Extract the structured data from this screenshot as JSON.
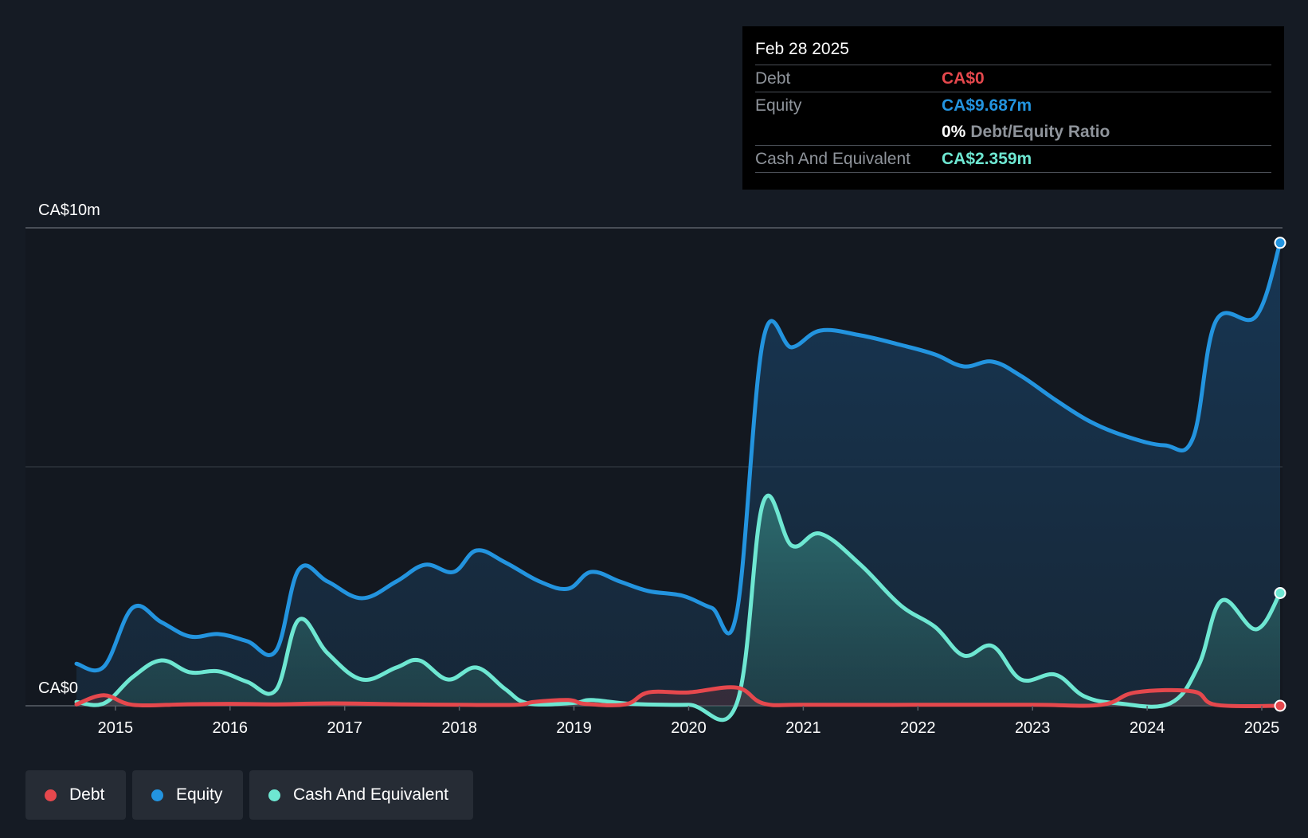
{
  "tooltip": {
    "date": "Feb 28 2025",
    "debt_label": "Debt",
    "debt_value": "CA$0",
    "equity_label": "Equity",
    "equity_value": "CA$9.687m",
    "ratio_value": "0%",
    "ratio_label": "Debt/Equity Ratio",
    "cash_label": "Cash And Equivalent",
    "cash_value": "CA$2.359m"
  },
  "legend": {
    "debt": "Debt",
    "equity": "Equity",
    "cash": "Cash And Equivalent"
  },
  "colors": {
    "debt": "#e5484d",
    "equity": "#2394df",
    "cash": "#6ee7d2",
    "background": "#151b24"
  },
  "chart_data": {
    "type": "area",
    "title": "",
    "xlabel": "",
    "ylabel": "",
    "ylim": [
      0,
      10
    ],
    "xlim": [
      2014.66,
      2025.16
    ],
    "y_tick_labels": [
      "CA$0",
      "CA$10m"
    ],
    "x_tick_labels": [
      "2015",
      "2016",
      "2017",
      "2018",
      "2019",
      "2020",
      "2021",
      "2022",
      "2023",
      "2024",
      "2025"
    ],
    "x_ticks": [
      2015,
      2016,
      2017,
      2018,
      2019,
      2020,
      2021,
      2022,
      2023,
      2024,
      2025
    ],
    "series": [
      {
        "name": "Equity",
        "x": [
          2014.66,
          2014.9,
          2015.15,
          2015.4,
          2015.65,
          2015.9,
          2016.15,
          2016.4,
          2016.6,
          2016.85,
          2017.15,
          2017.45,
          2017.7,
          2017.95,
          2018.15,
          2018.4,
          2018.7,
          2018.95,
          2019.15,
          2019.4,
          2019.65,
          2019.95,
          2020.2,
          2020.42,
          2020.65,
          2020.9,
          2021.15,
          2021.5,
          2021.85,
          2022.15,
          2022.4,
          2022.65,
          2022.9,
          2023.2,
          2023.5,
          2023.8,
          2024.15,
          2024.4,
          2024.6,
          2024.95,
          2025.16
        ],
        "values": [
          0.88,
          0.82,
          2.05,
          1.75,
          1.45,
          1.5,
          1.35,
          1.15,
          2.85,
          2.6,
          2.25,
          2.6,
          2.95,
          2.8,
          3.25,
          3.0,
          2.6,
          2.45,
          2.8,
          2.6,
          2.4,
          2.3,
          2.05,
          1.95,
          7.65,
          7.5,
          7.85,
          7.75,
          7.55,
          7.35,
          7.1,
          7.2,
          6.9,
          6.4,
          5.95,
          5.65,
          5.45,
          5.6,
          8.05,
          8.15,
          9.687
        ]
      },
      {
        "name": "Cash And Equivalent",
        "x": [
          2014.66,
          2014.9,
          2015.15,
          2015.4,
          2015.65,
          2015.9,
          2016.15,
          2016.4,
          2016.6,
          2016.85,
          2017.15,
          2017.45,
          2017.65,
          2017.9,
          2018.15,
          2018.4,
          2018.6,
          2019.0,
          2019.15,
          2019.5,
          2020.0,
          2020.42,
          2020.65,
          2020.9,
          2021.15,
          2021.5,
          2021.85,
          2022.15,
          2022.4,
          2022.65,
          2022.9,
          2023.2,
          2023.45,
          2023.75,
          2024.2,
          2024.45,
          2024.65,
          2024.95,
          2025.16
        ],
        "values": [
          0.08,
          0.05,
          0.6,
          0.95,
          0.7,
          0.72,
          0.5,
          0.33,
          1.8,
          1.1,
          0.55,
          0.8,
          0.95,
          0.55,
          0.8,
          0.35,
          0.05,
          0.06,
          0.12,
          0.04,
          0.02,
          0.05,
          4.25,
          3.35,
          3.6,
          2.95,
          2.1,
          1.65,
          1.05,
          1.25,
          0.55,
          0.65,
          0.2,
          0.05,
          0.05,
          0.85,
          2.2,
          1.6,
          2.359
        ]
      },
      {
        "name": "Debt",
        "x": [
          2014.66,
          2014.9,
          2015.15,
          2015.6,
          2016.0,
          2016.4,
          2016.9,
          2017.5,
          2018.0,
          2018.5,
          2018.65,
          2018.95,
          2019.1,
          2019.45,
          2019.65,
          2020.0,
          2020.42,
          2020.65,
          2021.0,
          2022.0,
          2023.0,
          2023.6,
          2023.9,
          2024.4,
          2024.6,
          2025.16
        ],
        "values": [
          0.03,
          0.22,
          0.02,
          0.03,
          0.04,
          0.03,
          0.05,
          0.03,
          0.02,
          0.02,
          0.08,
          0.12,
          0.04,
          0.03,
          0.28,
          0.28,
          0.38,
          0.05,
          0.02,
          0.02,
          0.02,
          0.02,
          0.28,
          0.3,
          0.02,
          0.0
        ]
      }
    ]
  }
}
